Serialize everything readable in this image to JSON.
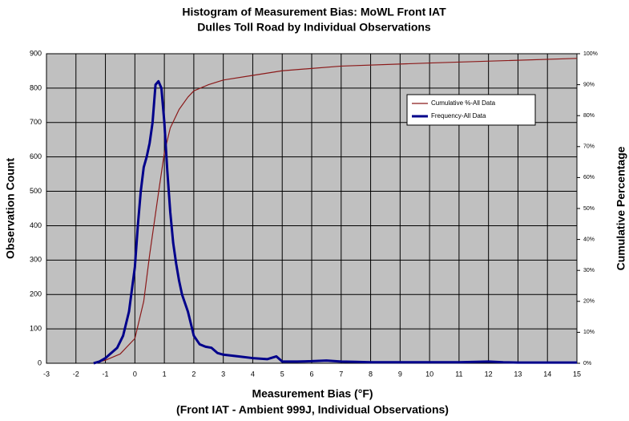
{
  "chart_data": {
    "type": "line",
    "title": "Histogram of Measurement Bias: MoWL Front IAT",
    "subtitle": "Dulles Toll Road by Individual Observations",
    "xlabel": [
      "Measurement Bias (°F)",
      "(Front IAT - Ambient 999J, Individual Observations)"
    ],
    "ylabel": "Observation Count",
    "y2label": "Cumulative Percentage",
    "xlim": [
      -3,
      15
    ],
    "xticks": [
      -3,
      -2,
      -1,
      0,
      1,
      2,
      3,
      4,
      5,
      6,
      7,
      8,
      9,
      10,
      11,
      12,
      13,
      14,
      15
    ],
    "ylim": [
      0,
      900
    ],
    "yticks": [
      0,
      100,
      200,
      300,
      400,
      500,
      600,
      700,
      800,
      900
    ],
    "y2lim": [
      0,
      100
    ],
    "y2ticks": [
      {
        "value": 0,
        "label": "0%"
      },
      {
        "value": 10,
        "label": "10%"
      },
      {
        "value": 20,
        "label": "20%"
      },
      {
        "value": 30,
        "label": "30%"
      },
      {
        "value": 40,
        "label": "40%"
      },
      {
        "value": 50,
        "label": "50%"
      },
      {
        "value": 60,
        "label": "60%"
      },
      {
        "value": 70,
        "label": "70%"
      },
      {
        "value": 80,
        "label": "80%"
      },
      {
        "value": 90,
        "label": "90%"
      },
      {
        "value": 100,
        "label": "100%"
      }
    ],
    "grid": true,
    "legend": "upper-right",
    "series": [
      {
        "name": "Cumulative %-All Data",
        "color": "#8b1a1a",
        "axis": "y2",
        "x": [
          -1.4,
          -1,
          -0.5,
          0,
          0.3,
          0.5,
          0.8,
          1,
          1.2,
          1.5,
          1.8,
          2,
          2.5,
          3,
          4,
          5,
          7,
          10,
          15
        ],
        "values": [
          0,
          1,
          3,
          8,
          20,
          35,
          55,
          68,
          76,
          82,
          86,
          88,
          90,
          91.5,
          93,
          94.5,
          96,
          97,
          98.5
        ]
      },
      {
        "name": "Frequency-All Data",
        "color": "#00008b",
        "x": [
          -1.4,
          -1.2,
          -1,
          -0.8,
          -0.6,
          -0.4,
          -0.2,
          0,
          0.1,
          0.2,
          0.3,
          0.4,
          0.5,
          0.6,
          0.7,
          0.8,
          0.9,
          1,
          1.1,
          1.2,
          1.3,
          1.4,
          1.5,
          1.6,
          1.8,
          2,
          2.2,
          2.4,
          2.6,
          2.8,
          3,
          3.5,
          4,
          4.5,
          4.8,
          5,
          5.5,
          6,
          6.5,
          7,
          7.5,
          8,
          9,
          10,
          11,
          12,
          12.5,
          13,
          14,
          15
        ],
        "values": [
          0,
          5,
          15,
          30,
          45,
          80,
          150,
          280,
          400,
          500,
          570,
          600,
          640,
          700,
          810,
          820,
          800,
          700,
          560,
          440,
          350,
          290,
          240,
          200,
          150,
          80,
          55,
          48,
          45,
          30,
          25,
          20,
          15,
          12,
          20,
          5,
          5,
          6,
          8,
          5,
          4,
          3,
          3,
          3,
          3,
          5,
          3,
          2,
          2,
          2
        ]
      }
    ]
  }
}
